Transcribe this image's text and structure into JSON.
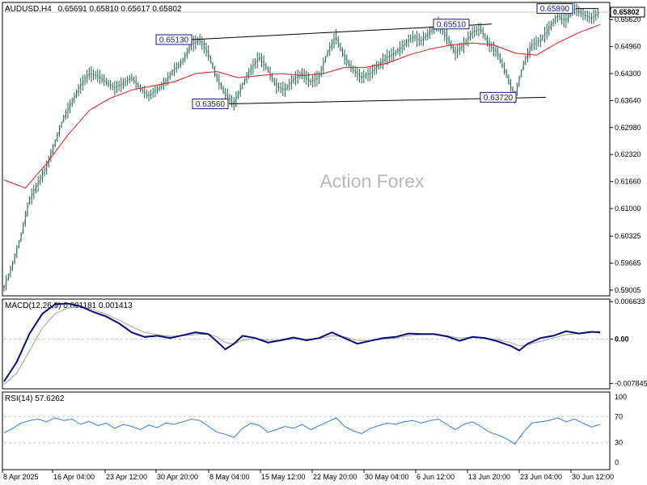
{
  "header": {
    "symbol_tf": "AUDUSD,H4",
    "ohlc": "0.65691 0.65810 0.65617 0.65802"
  },
  "watermark": "Action Forex",
  "colors": {
    "price": "#1f5f4f",
    "ma": "#e01b1b",
    "macd": "#0a0a7a",
    "signal": "#a0a0a0",
    "rsi": "#2f7fd8",
    "label_border": "#1a1a7a",
    "grid": "#c8c8c8"
  },
  "chart_data": [
    {
      "type": "line",
      "name": "price",
      "price_labels": [
        "0.65620",
        "0.64960",
        "0.64300",
        "0.63640",
        "0.62980",
        "0.62320",
        "0.61660",
        "0.61000",
        "0.60325",
        "0.59665",
        "0.59005"
      ],
      "last_price": "0.65802",
      "yrange": [
        0.58905,
        0.66
      ],
      "annotations": [
        {
          "label": "0.65130",
          "value": 0.6513
        },
        {
          "label": "0.63560",
          "value": 0.6356
        },
        {
          "label": "0.65510",
          "value": 0.6551
        },
        {
          "label": "0.63720",
          "value": 0.6372
        },
        {
          "label": "0.65890",
          "value": 0.6589
        }
      ],
      "channel_upper": [
        [
          0.6513,
          0.6551
        ]
      ],
      "channel_lower": [
        [
          0.6356,
          0.6372
        ]
      ],
      "series_points": [
        [
          0,
          0.5905
        ],
        [
          4,
          0.596
        ],
        [
          8,
          0.603
        ],
        [
          12,
          0.612
        ],
        [
          16,
          0.616
        ],
        [
          20,
          0.62
        ],
        [
          24,
          0.626
        ],
        [
          28,
          0.632
        ],
        [
          32,
          0.636
        ],
        [
          36,
          0.64
        ],
        [
          40,
          0.643
        ],
        [
          44,
          0.6425
        ],
        [
          48,
          0.641
        ],
        [
          52,
          0.6395
        ],
        [
          56,
          0.6405
        ],
        [
          60,
          0.642
        ],
        [
          64,
          0.6395
        ],
        [
          68,
          0.6375
        ],
        [
          72,
          0.639
        ],
        [
          76,
          0.641
        ],
        [
          80,
          0.644
        ],
        [
          84,
          0.646
        ],
        [
          88,
          0.65
        ],
        [
          92,
          0.6513
        ],
        [
          96,
          0.648
        ],
        [
          100,
          0.642
        ],
        [
          104,
          0.638
        ],
        [
          108,
          0.6356
        ],
        [
          112,
          0.64
        ],
        [
          116,
          0.644
        ],
        [
          120,
          0.647
        ],
        [
          124,
          0.644
        ],
        [
          128,
          0.64
        ],
        [
          132,
          0.639
        ],
        [
          136,
          0.6415
        ],
        [
          140,
          0.643
        ],
        [
          144,
          0.641
        ],
        [
          148,
          0.642
        ],
        [
          152,
          0.648
        ],
        [
          156,
          0.652
        ],
        [
          160,
          0.647
        ],
        [
          164,
          0.644
        ],
        [
          168,
          0.642
        ],
        [
          172,
          0.643
        ],
        [
          176,
          0.645
        ],
        [
          180,
          0.647
        ],
        [
          184,
          0.648
        ],
        [
          188,
          0.65
        ],
        [
          192,
          0.652
        ],
        [
          196,
          0.651
        ],
        [
          200,
          0.653
        ],
        [
          204,
          0.6551
        ],
        [
          208,
          0.652
        ],
        [
          212,
          0.648
        ],
        [
          216,
          0.65
        ],
        [
          220,
          0.653
        ],
        [
          224,
          0.654
        ],
        [
          228,
          0.65
        ],
        [
          232,
          0.648
        ],
        [
          236,
          0.643
        ],
        [
          240,
          0.6372
        ],
        [
          244,
          0.645
        ],
        [
          248,
          0.65
        ],
        [
          252,
          0.651
        ],
        [
          256,
          0.654
        ],
        [
          260,
          0.657
        ],
        [
          264,
          0.656
        ],
        [
          268,
          0.6589
        ],
        [
          272,
          0.6575
        ],
        [
          276,
          0.6565
        ],
        [
          280,
          0.658
        ]
      ],
      "ma_points": [
        [
          0,
          0.617
        ],
        [
          10,
          0.615
        ],
        [
          20,
          0.621
        ],
        [
          30,
          0.628
        ],
        [
          40,
          0.634
        ],
        [
          50,
          0.637
        ],
        [
          60,
          0.639
        ],
        [
          70,
          0.64
        ],
        [
          80,
          0.641
        ],
        [
          90,
          0.643
        ],
        [
          100,
          0.6435
        ],
        [
          110,
          0.642
        ],
        [
          120,
          0.6425
        ],
        [
          130,
          0.643
        ],
        [
          140,
          0.6425
        ],
        [
          150,
          0.643
        ],
        [
          160,
          0.6445
        ],
        [
          170,
          0.6445
        ],
        [
          180,
          0.6455
        ],
        [
          190,
          0.6475
        ],
        [
          200,
          0.649
        ],
        [
          210,
          0.65
        ],
        [
          220,
          0.6505
        ],
        [
          230,
          0.65
        ],
        [
          240,
          0.648
        ],
        [
          250,
          0.6475
        ],
        [
          260,
          0.6505
        ],
        [
          270,
          0.653
        ],
        [
          280,
          0.655
        ]
      ]
    },
    {
      "type": "line",
      "name": "macd",
      "label": "MACD(12,26,9) 0.001181 0.001413",
      "ticks": [
        "0.006633",
        "0.00",
        "-0.007845"
      ],
      "yrange": [
        -0.0085,
        0.0068
      ],
      "series_points": [
        [
          0,
          -0.0075
        ],
        [
          6,
          -0.004
        ],
        [
          12,
          0.001
        ],
        [
          18,
          0.0045
        ],
        [
          24,
          0.0062
        ],
        [
          30,
          0.0063
        ],
        [
          36,
          0.0058
        ],
        [
          42,
          0.0048
        ],
        [
          48,
          0.004
        ],
        [
          54,
          0.0028
        ],
        [
          60,
          0.0012
        ],
        [
          66,
          0.0004
        ],
        [
          72,
          0.0006
        ],
        [
          78,
          0.0002
        ],
        [
          84,
          0.0007
        ],
        [
          90,
          0.0012
        ],
        [
          96,
          0.0009
        ],
        [
          100,
          -0.0004
        ],
        [
          104,
          -0.0018
        ],
        [
          108,
          -0.0008
        ],
        [
          112,
          0.0006
        ],
        [
          118,
          0.0002
        ],
        [
          124,
          -0.0006
        ],
        [
          130,
          -0.0002
        ],
        [
          136,
          0.0003
        ],
        [
          142,
          -0.0002
        ],
        [
          148,
          0.0002
        ],
        [
          154,
          0.0012
        ],
        [
          160,
          0.0002
        ],
        [
          166,
          -0.0008
        ],
        [
          172,
          -0.0003
        ],
        [
          178,
          0.0002
        ],
        [
          184,
          0.0004
        ],
        [
          190,
          0.001
        ],
        [
          196,
          0.0009
        ],
        [
          202,
          0.0009
        ],
        [
          208,
          0.0005
        ],
        [
          214,
          -0.0003
        ],
        [
          220,
          0.0004
        ],
        [
          226,
          0.0002
        ],
        [
          232,
          -0.0004
        ],
        [
          238,
          -0.0012
        ],
        [
          242,
          -0.002
        ],
        [
          246,
          -0.0008
        ],
        [
          252,
          0.0002
        ],
        [
          258,
          0.0006
        ],
        [
          264,
          0.0014
        ],
        [
          270,
          0.001
        ],
        [
          276,
          0.0013
        ],
        [
          280,
          0.0012
        ]
      ],
      "signal_points": [
        [
          0,
          -0.008
        ],
        [
          6,
          -0.006
        ],
        [
          12,
          -0.002
        ],
        [
          18,
          0.002
        ],
        [
          24,
          0.0045
        ],
        [
          30,
          0.0055
        ],
        [
          36,
          0.0058
        ],
        [
          42,
          0.0052
        ],
        [
          48,
          0.0044
        ],
        [
          54,
          0.0034
        ],
        [
          60,
          0.0022
        ],
        [
          66,
          0.0012
        ],
        [
          72,
          0.0008
        ],
        [
          78,
          0.0005
        ],
        [
          84,
          0.0006
        ],
        [
          90,
          0.0008
        ],
        [
          96,
          0.0009
        ],
        [
          100,
          0.0004
        ],
        [
          104,
          -0.0006
        ],
        [
          108,
          -0.0008
        ],
        [
          112,
          -0.0002
        ],
        [
          118,
          0.0001
        ],
        [
          124,
          -0.0002
        ],
        [
          130,
          -0.0002
        ],
        [
          136,
          0.0
        ],
        [
          142,
          0.0
        ],
        [
          148,
          0.0001
        ],
        [
          154,
          0.0006
        ],
        [
          160,
          0.0004
        ],
        [
          166,
          -0.0002
        ],
        [
          172,
          -0.0003
        ],
        [
          178,
          0.0
        ],
        [
          184,
          0.0002
        ],
        [
          190,
          0.0006
        ],
        [
          196,
          0.0008
        ],
        [
          202,
          0.0008
        ],
        [
          208,
          0.0006
        ],
        [
          214,
          0.0002
        ],
        [
          220,
          0.0003
        ],
        [
          226,
          0.0002
        ],
        [
          232,
          -0.0001
        ],
        [
          238,
          -0.0006
        ],
        [
          242,
          -0.0012
        ],
        [
          246,
          -0.001
        ],
        [
          252,
          -0.0004
        ],
        [
          258,
          0.0002
        ],
        [
          264,
          0.0008
        ],
        [
          270,
          0.001
        ],
        [
          276,
          0.0012
        ],
        [
          280,
          0.0014
        ]
      ]
    },
    {
      "type": "line",
      "name": "rsi",
      "label": "RSI(14) 57.6262",
      "ticks": [
        "100",
        "70",
        "30",
        "0"
      ],
      "yrange": [
        0,
        100
      ],
      "series_points": [
        [
          0,
          45
        ],
        [
          4,
          52
        ],
        [
          8,
          60
        ],
        [
          12,
          64
        ],
        [
          16,
          66
        ],
        [
          20,
          62
        ],
        [
          24,
          68
        ],
        [
          28,
          64
        ],
        [
          32,
          66
        ],
        [
          36,
          58
        ],
        [
          40,
          63
        ],
        [
          44,
          56
        ],
        [
          48,
          60
        ],
        [
          52,
          52
        ],
        [
          56,
          58
        ],
        [
          60,
          55
        ],
        [
          64,
          50
        ],
        [
          68,
          57
        ],
        [
          72,
          53
        ],
        [
          76,
          60
        ],
        [
          80,
          58
        ],
        [
          84,
          62
        ],
        [
          88,
          66
        ],
        [
          92,
          64
        ],
        [
          96,
          55
        ],
        [
          100,
          46
        ],
        [
          104,
          43
        ],
        [
          108,
          38
        ],
        [
          112,
          52
        ],
        [
          116,
          60
        ],
        [
          120,
          56
        ],
        [
          124,
          46
        ],
        [
          128,
          50
        ],
        [
          132,
          55
        ],
        [
          136,
          52
        ],
        [
          140,
          58
        ],
        [
          144,
          50
        ],
        [
          148,
          56
        ],
        [
          152,
          62
        ],
        [
          156,
          68
        ],
        [
          160,
          55
        ],
        [
          164,
          48
        ],
        [
          168,
          44
        ],
        [
          172,
          52
        ],
        [
          176,
          56
        ],
        [
          180,
          60
        ],
        [
          184,
          58
        ],
        [
          188,
          62
        ],
        [
          192,
          64
        ],
        [
          196,
          60
        ],
        [
          200,
          64
        ],
        [
          204,
          66
        ],
        [
          208,
          58
        ],
        [
          212,
          50
        ],
        [
          216,
          58
        ],
        [
          220,
          62
        ],
        [
          224,
          55
        ],
        [
          228,
          46
        ],
        [
          232,
          42
        ],
        [
          236,
          36
        ],
        [
          240,
          28
        ],
        [
          244,
          46
        ],
        [
          248,
          60
        ],
        [
          252,
          62
        ],
        [
          256,
          64
        ],
        [
          260,
          68
        ],
        [
          264,
          62
        ],
        [
          268,
          66
        ],
        [
          272,
          60
        ],
        [
          276,
          54
        ],
        [
          280,
          58
        ]
      ]
    }
  ],
  "x_labels": [
    "8 Apr 2025",
    "16 Apr 04:00",
    "23 Apr 12:00",
    "30 Apr 20:00",
    "8 May 04:00",
    "15 May 12:00",
    "22 May 20:00",
    "30 May 04:00",
    "6 Jun 12:00",
    "13 Jun 20:00",
    "23 Jun 04:00",
    "30 Jun 12:00"
  ]
}
